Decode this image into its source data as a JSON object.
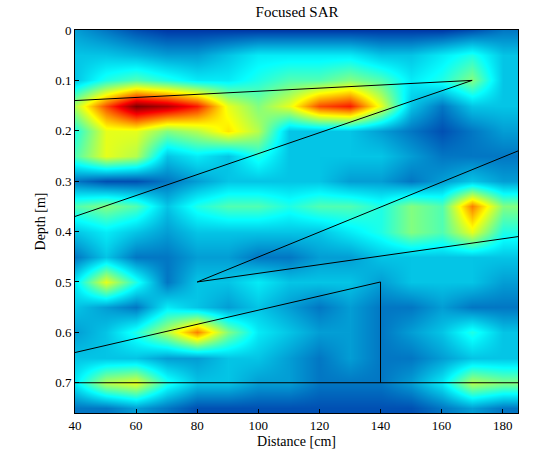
{
  "chart_data": {
    "type": "heatmap",
    "title": "Focused SAR",
    "x_label": "Distance [cm]",
    "y_label": "Depth [m]",
    "x": [
      40,
      50,
      60,
      70,
      80,
      90,
      100,
      110,
      120,
      130,
      140,
      150,
      160,
      170,
      180
    ],
    "y": [
      0,
      0.05,
      0.1,
      0.15,
      0.2,
      0.25,
      0.3,
      0.35,
      0.4,
      0.45,
      0.5,
      0.55,
      0.6,
      0.65,
      0.7,
      0.75
    ],
    "cells": [
      [
        0.25,
        0.2,
        0.15,
        0.12,
        0.12,
        0.12,
        0.12,
        0.12,
        0.12,
        0.12,
        0.12,
        0.12,
        0.12,
        0.15,
        0.2
      ],
      [
        0.3,
        0.3,
        0.28,
        0.25,
        0.25,
        0.3,
        0.35,
        0.35,
        0.35,
        0.35,
        0.3,
        0.3,
        0.35,
        0.4,
        0.3
      ],
      [
        0.3,
        0.4,
        0.45,
        0.4,
        0.35,
        0.35,
        0.4,
        0.45,
        0.45,
        0.5,
        0.45,
        0.35,
        0.4,
        0.5,
        0.3
      ],
      [
        0.55,
        0.8,
        1.0,
        0.95,
        0.85,
        0.6,
        0.5,
        0.6,
        0.8,
        0.85,
        0.6,
        0.3,
        0.2,
        0.3,
        0.3
      ],
      [
        0.4,
        0.6,
        0.6,
        0.5,
        0.55,
        0.65,
        0.55,
        0.3,
        0.3,
        0.3,
        0.25,
        0.2,
        0.15,
        0.2,
        0.25
      ],
      [
        0.45,
        0.6,
        0.55,
        0.3,
        0.35,
        0.3,
        0.4,
        0.3,
        0.3,
        0.3,
        0.3,
        0.25,
        0.2,
        0.2,
        0.2
      ],
      [
        0.2,
        0.15,
        0.15,
        0.2,
        0.25,
        0.3,
        0.3,
        0.3,
        0.3,
        0.25,
        0.25,
        0.2,
        0.25,
        0.3,
        0.25
      ],
      [
        0.45,
        0.5,
        0.45,
        0.3,
        0.4,
        0.45,
        0.45,
        0.4,
        0.45,
        0.45,
        0.4,
        0.5,
        0.45,
        0.75,
        0.5
      ],
      [
        0.3,
        0.35,
        0.3,
        0.25,
        0.3,
        0.3,
        0.3,
        0.3,
        0.3,
        0.35,
        0.4,
        0.5,
        0.45,
        0.6,
        0.4
      ],
      [
        0.2,
        0.3,
        0.2,
        0.2,
        0.25,
        0.25,
        0.2,
        0.2,
        0.25,
        0.25,
        0.3,
        0.3,
        0.3,
        0.3,
        0.3
      ],
      [
        0.35,
        0.6,
        0.4,
        0.2,
        0.3,
        0.3,
        0.35,
        0.3,
        0.3,
        0.3,
        0.25,
        0.3,
        0.3,
        0.3,
        0.25
      ],
      [
        0.3,
        0.25,
        0.2,
        0.35,
        0.3,
        0.25,
        0.3,
        0.25,
        0.2,
        0.25,
        0.2,
        0.2,
        0.25,
        0.2,
        0.2
      ],
      [
        0.25,
        0.3,
        0.4,
        0.55,
        0.75,
        0.5,
        0.35,
        0.3,
        0.25,
        0.25,
        0.2,
        0.25,
        0.3,
        0.4,
        0.3
      ],
      [
        0.3,
        0.3,
        0.3,
        0.25,
        0.25,
        0.3,
        0.3,
        0.25,
        0.2,
        0.25,
        0.2,
        0.2,
        0.25,
        0.3,
        0.3
      ],
      [
        0.35,
        0.55,
        0.6,
        0.4,
        0.3,
        0.3,
        0.25,
        0.25,
        0.2,
        0.2,
        0.2,
        0.25,
        0.35,
        0.55,
        0.5
      ],
      [
        0.2,
        0.2,
        0.25,
        0.2,
        0.15,
        0.15,
        0.15,
        0.15,
        0.15,
        0.15,
        0.15,
        0.15,
        0.2,
        0.25,
        0.2
      ]
    ],
    "zlim": [
      0,
      1
    ],
    "lines": [
      {
        "x": [
          40,
          170
        ],
        "y": [
          0.14,
          0.1
        ]
      },
      {
        "x": [
          40,
          170
        ],
        "y": [
          0.37,
          0.1
        ]
      },
      {
        "x": [
          80,
          185
        ],
        "y": [
          0.5,
          0.24
        ]
      },
      {
        "x": [
          80,
          185
        ],
        "y": [
          0.5,
          0.41
        ]
      },
      {
        "x": [
          40,
          140
        ],
        "y": [
          0.64,
          0.5
        ]
      },
      {
        "x": [
          140,
          140
        ],
        "y": [
          0.5,
          0.7
        ]
      },
      {
        "x": [
          40,
          185
        ],
        "y": [
          0.7,
          0.7
        ]
      }
    ],
    "xlim": [
      40,
      185
    ],
    "ylim": [
      0.76,
      0
    ],
    "xticks": [
      40,
      60,
      80,
      100,
      120,
      140,
      160,
      180
    ],
    "yticks": [
      0,
      0.1,
      0.2,
      0.3,
      0.4,
      0.5,
      0.6,
      0.7
    ],
    "color": "#000000"
  }
}
